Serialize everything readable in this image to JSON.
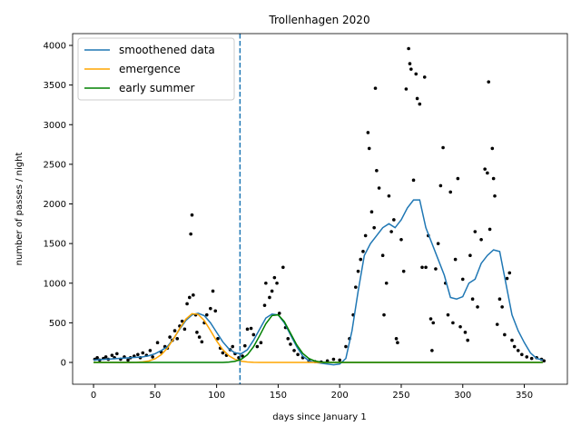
{
  "chart_data": {
    "type": "line",
    "title": "Trollenhagen 2020",
    "xlabel": "days since January 1",
    "ylabel": "number of passes / night",
    "xlim": [
      -17,
      385
    ],
    "ylim": [
      -275,
      4149
    ],
    "xticks": [
      0,
      50,
      100,
      150,
      200,
      250,
      300,
      350
    ],
    "yticks": [
      0,
      500,
      1000,
      1500,
      2000,
      2500,
      3000,
      3500,
      4000
    ],
    "legend": "upper left",
    "x": [
      0,
      5,
      10,
      15,
      20,
      25,
      30,
      35,
      40,
      45,
      50,
      55,
      60,
      65,
      70,
      75,
      80,
      85,
      90,
      95,
      100,
      105,
      110,
      115,
      120,
      125,
      130,
      135,
      140,
      145,
      150,
      155,
      160,
      165,
      170,
      175,
      180,
      185,
      190,
      195,
      200,
      205,
      210,
      215,
      220,
      225,
      230,
      235,
      240,
      245,
      250,
      255,
      260,
      265,
      270,
      275,
      280,
      285,
      290,
      295,
      300,
      305,
      310,
      315,
      320,
      325,
      330,
      335,
      340,
      345,
      350,
      355,
      360,
      365
    ],
    "series": [
      {
        "name": "smoothened data",
        "color": "#1f77b4",
        "values": [
          30,
          35,
          40,
          45,
          50,
          55,
          60,
          65,
          70,
          85,
          110,
          150,
          200,
          300,
          420,
          530,
          600,
          620,
          590,
          500,
          380,
          260,
          170,
          120,
          110,
          160,
          280,
          420,
          560,
          610,
          600,
          500,
          350,
          200,
          80,
          20,
          0,
          -10,
          -20,
          -30,
          -20,
          50,
          400,
          900,
          1350,
          1500,
          1600,
          1700,
          1750,
          1700,
          1800,
          1950,
          2050,
          2050,
          1700,
          1500,
          1300,
          1100,
          820,
          800,
          830,
          1000,
          1050,
          1250,
          1350,
          1420,
          1400,
          1000,
          600,
          400,
          250,
          120,
          50,
          30
        ]
      },
      {
        "name": "emergence",
        "color": "#ffa500",
        "values": [
          0,
          0,
          0,
          0,
          0,
          0,
          0,
          2,
          7,
          19,
          46,
          97,
          180,
          297,
          430,
          547,
          614,
          606,
          527,
          403,
          271,
          161,
          84,
          38,
          16,
          6,
          2,
          0,
          0,
          0,
          0,
          0,
          0,
          0,
          0,
          0,
          0,
          0,
          0,
          0,
          0,
          0,
          0,
          0,
          0,
          0,
          0,
          0,
          0,
          0,
          0,
          0,
          0,
          0,
          0,
          0,
          0,
          0,
          0,
          0,
          0,
          0,
          0,
          0,
          0,
          0,
          0,
          0,
          0,
          0,
          0,
          0,
          0,
          0
        ]
      },
      {
        "name": "early summer",
        "color": "#008000",
        "values": [
          0,
          0,
          0,
          0,
          0,
          0,
          0,
          0,
          0,
          0,
          0,
          0,
          0,
          0,
          0,
          0,
          0,
          0,
          0,
          0,
          0,
          0,
          4,
          14,
          40,
          97,
          198,
          339,
          488,
          591,
          601,
          515,
          370,
          224,
          114,
          49,
          17,
          5,
          0,
          0,
          0,
          0,
          0,
          0,
          0,
          0,
          0,
          0,
          0,
          0,
          0,
          0,
          0,
          0,
          0,
          0,
          0,
          0,
          0,
          0,
          0,
          0,
          0,
          0,
          0,
          0,
          0,
          0,
          0,
          0,
          0,
          0,
          0,
          0
        ]
      }
    ],
    "points": {
      "color": "#000000",
      "x": [
        1,
        3,
        5,
        8,
        10,
        12,
        15,
        17,
        19,
        22,
        25,
        28,
        30,
        33,
        36,
        38,
        40,
        43,
        46,
        48,
        52,
        55,
        58,
        60,
        62,
        64,
        66,
        68,
        70,
        72,
        74,
        76,
        78,
        79,
        80,
        81,
        83,
        84,
        86,
        88,
        90,
        92,
        95,
        97,
        99,
        101,
        103,
        105,
        108,
        111,
        113,
        115,
        118,
        121,
        123,
        125,
        128,
        130,
        133,
        136,
        139,
        140,
        143,
        145,
        147,
        149,
        151,
        154,
        156,
        158,
        160,
        163,
        166,
        170,
        175,
        180,
        185,
        190,
        195,
        200,
        205,
        208,
        211,
        213,
        215,
        217,
        219,
        221,
        223,
        224,
        226,
        228,
        229,
        230,
        232,
        235,
        236,
        238,
        240,
        242,
        244,
        246,
        247,
        250,
        252,
        254,
        256,
        257,
        258,
        260,
        262,
        263,
        265,
        267,
        269,
        270,
        272,
        274,
        275,
        276,
        278,
        280,
        282,
        284,
        286,
        288,
        290,
        292,
        294,
        296,
        298,
        300,
        302,
        304,
        306,
        308,
        310,
        312,
        315,
        318,
        320,
        321,
        322,
        324,
        325,
        326,
        328,
        330,
        332,
        334,
        336,
        338,
        340,
        342,
        345,
        348,
        352,
        356,
        360,
        364,
        366
      ],
      "y": [
        40,
        60,
        30,
        50,
        70,
        40,
        90,
        60,
        110,
        40,
        70,
        30,
        60,
        80,
        100,
        60,
        120,
        90,
        150,
        70,
        250,
        130,
        200,
        180,
        320,
        280,
        400,
        300,
        460,
        520,
        420,
        740,
        820,
        1620,
        1860,
        850,
        600,
        380,
        320,
        260,
        500,
        600,
        680,
        900,
        650,
        300,
        180,
        120,
        90,
        160,
        200,
        110,
        60,
        80,
        210,
        420,
        430,
        350,
        200,
        250,
        720,
        1000,
        820,
        900,
        1070,
        1000,
        620,
        1200,
        440,
        300,
        230,
        150,
        100,
        60,
        20,
        10,
        5,
        20,
        40,
        30,
        200,
        300,
        600,
        950,
        1150,
        1300,
        1400,
        1600,
        2900,
        2700,
        1900,
        1700,
        3460,
        2420,
        2200,
        1350,
        600,
        1000,
        2100,
        1650,
        1800,
        300,
        250,
        1550,
        1150,
        3450,
        3960,
        3770,
        3700,
        2300,
        3640,
        3330,
        3260,
        1200,
        3600,
        1200,
        1600,
        550,
        150,
        500,
        1180,
        1500,
        2230,
        2710,
        1000,
        600,
        2150,
        500,
        1300,
        2320,
        450,
        1050,
        380,
        280,
        1350,
        800,
        1650,
        700,
        1550,
        2440,
        2390,
        3540,
        1680,
        2700,
        2320,
        2100,
        480,
        800,
        700,
        350,
        1060,
        1130,
        280,
        200,
        150,
        100,
        70,
        50,
        60,
        40,
        20
      ]
    },
    "vline": {
      "x": 119,
      "color": "#1f77b4",
      "style": "dashed"
    }
  }
}
